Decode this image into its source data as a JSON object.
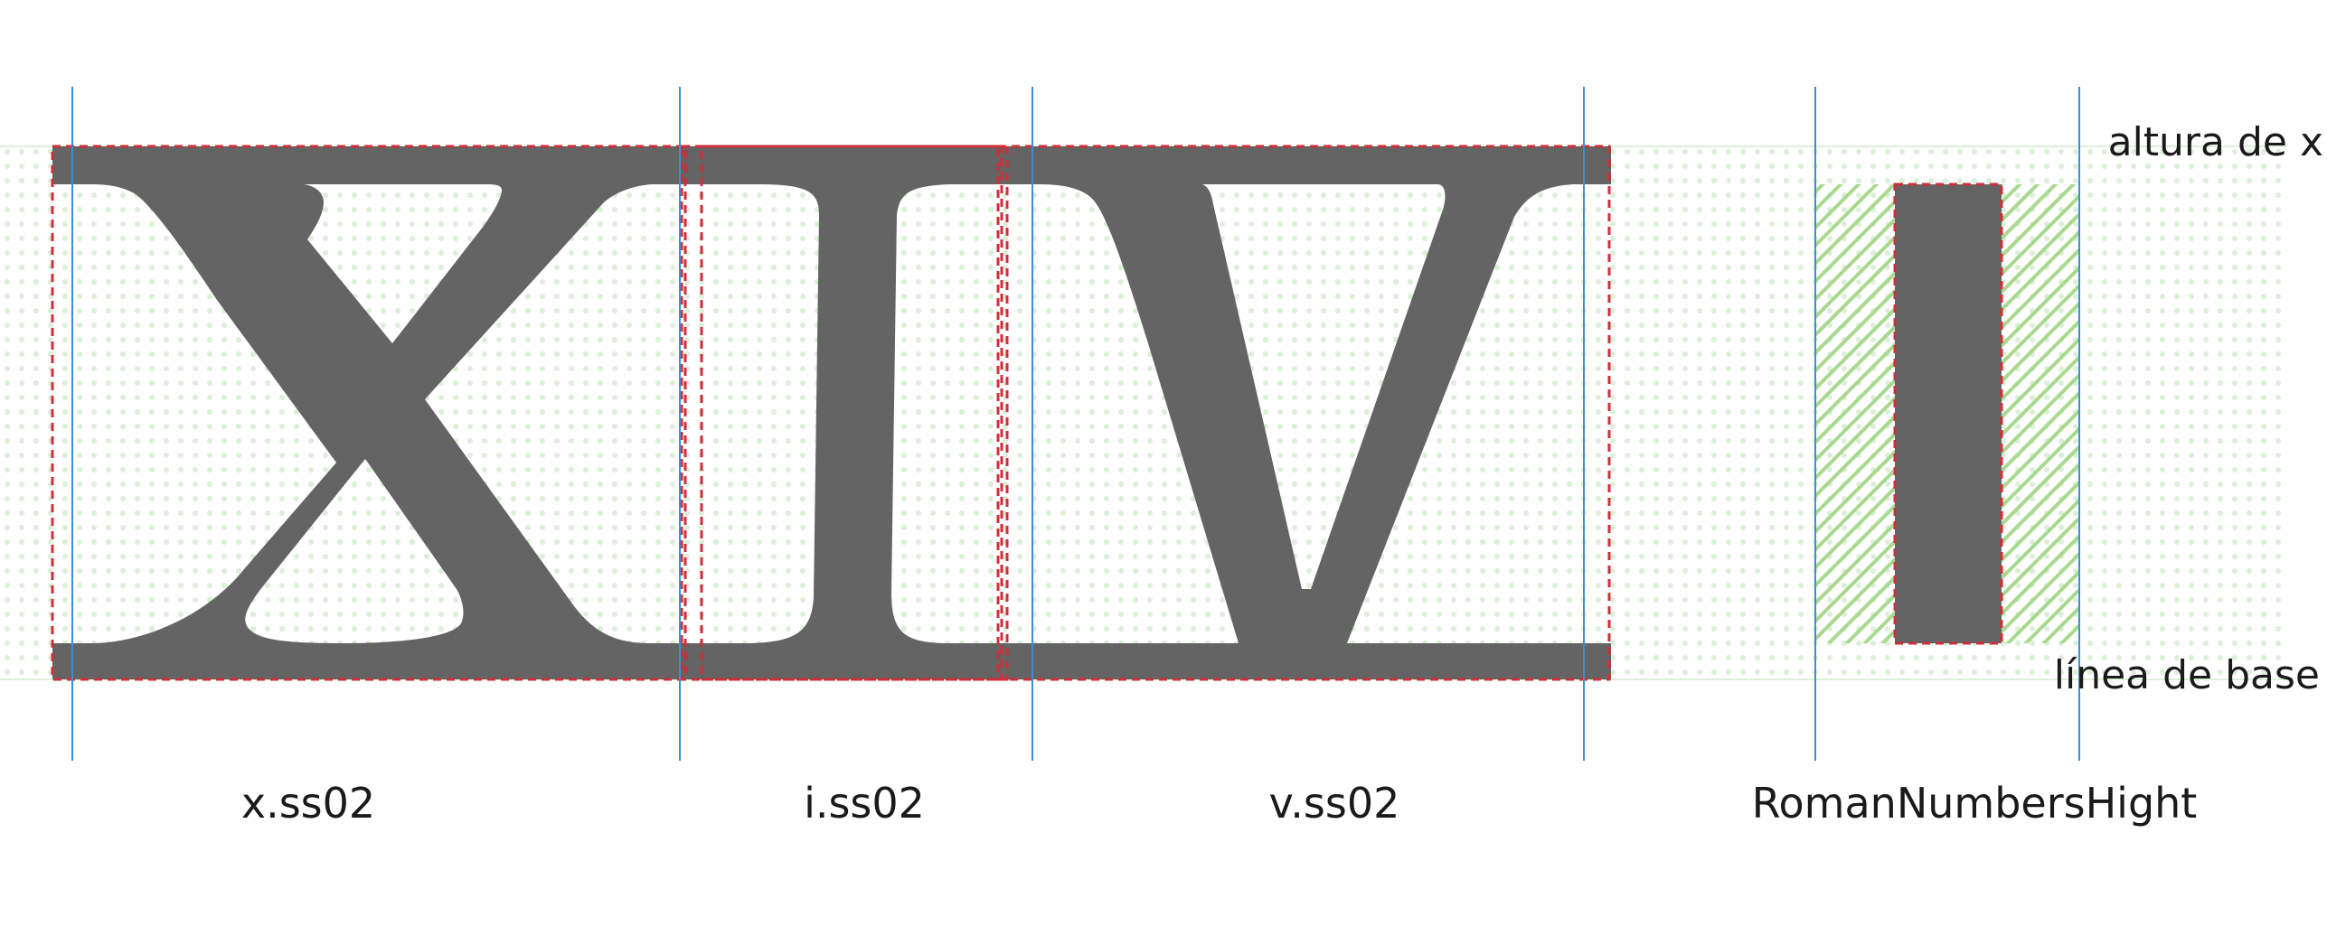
{
  "guides": {
    "top_label": "altura de x",
    "bottom_label": "línea de base"
  },
  "glyphs": [
    {
      "name": "x.ss02"
    },
    {
      "name": "i.ss02"
    },
    {
      "name": "v.ss02"
    },
    {
      "name": "RomanNumbersHight"
    }
  ],
  "colors": {
    "glyph_fill": "#636463",
    "bbox_stroke": "#cf2e3a",
    "sidebearing_line": "#3d8fd1",
    "grid_dot": "#dcefd8",
    "hatch": "#a8d98e",
    "text": "#1a1a1a"
  }
}
